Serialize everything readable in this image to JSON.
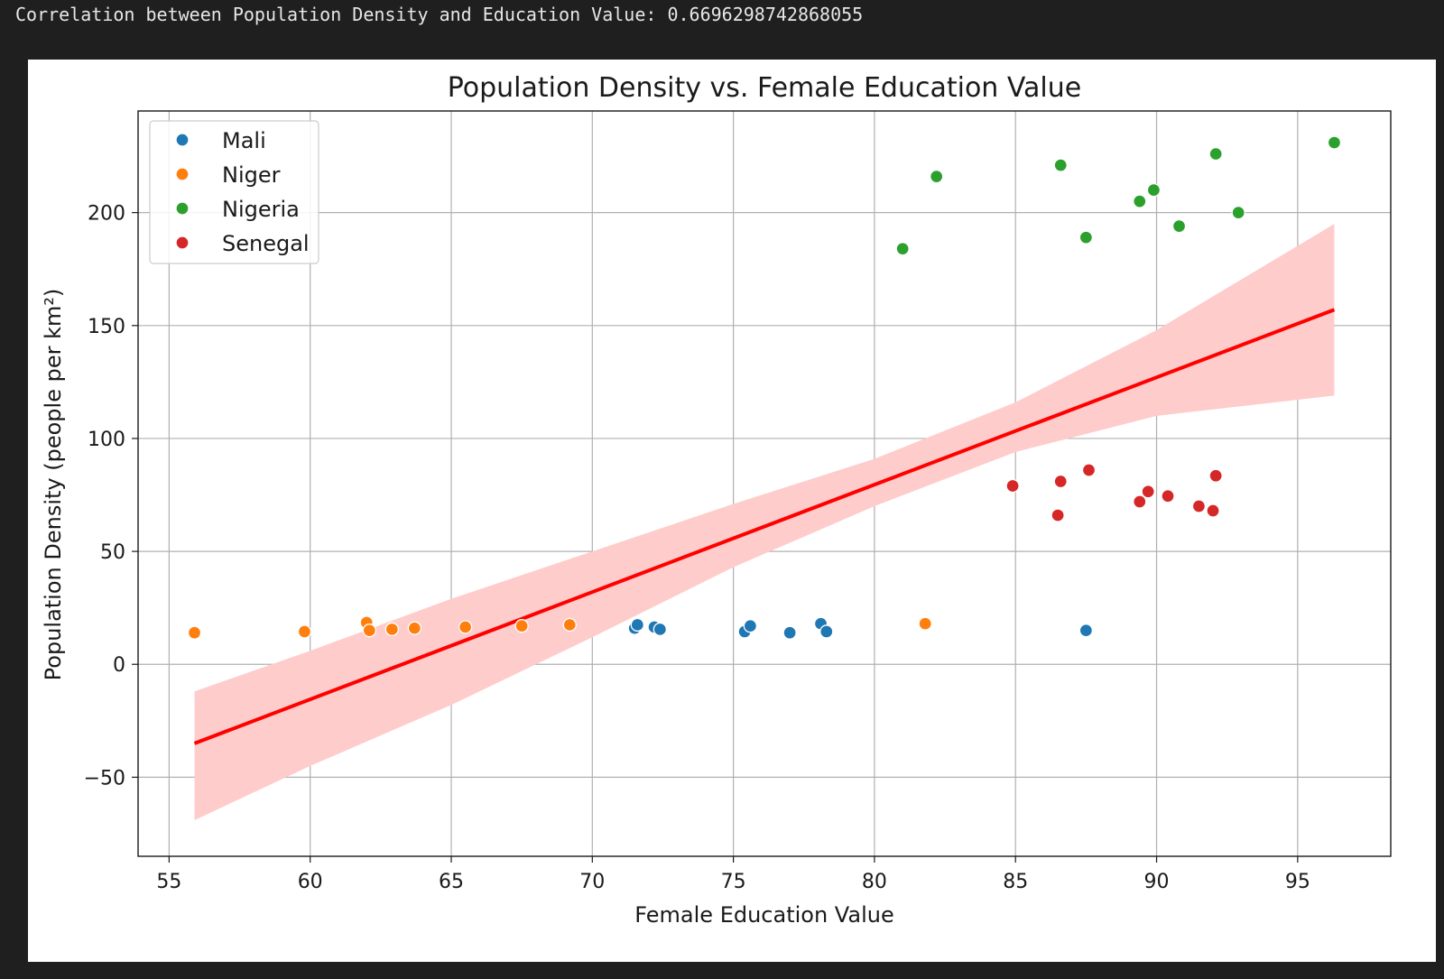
{
  "output": {
    "text": "Correlation between Population Density and Education Value: 0.6696298742868055"
  },
  "chart_data": {
    "type": "scatter",
    "title": "Population Density vs. Female Education Value",
    "xlabel": "Female Education Value",
    "ylabel": "Population Density (people per km²)",
    "xlim": [
      53.9,
      98.3
    ],
    "ylim": [
      -85,
      245
    ],
    "xticks": [
      55,
      60,
      65,
      70,
      75,
      80,
      85,
      90,
      95
    ],
    "xtick_labels": [
      "55",
      "60",
      "65",
      "70",
      "75",
      "80",
      "85",
      "90",
      "95"
    ],
    "yticks": [
      -50,
      0,
      50,
      100,
      150,
      200
    ],
    "ytick_labels": [
      "−50",
      "0",
      "50",
      "100",
      "150",
      "200"
    ],
    "grid": true,
    "legend_position": "top-left",
    "series": [
      {
        "name": "Mali",
        "color": "#1f77b4",
        "points": [
          [
            71.5,
            16
          ],
          [
            71.6,
            17.5
          ],
          [
            72.2,
            16.5
          ],
          [
            72.4,
            15.5
          ],
          [
            75.4,
            14.5
          ],
          [
            75.6,
            17
          ],
          [
            77.0,
            14
          ],
          [
            78.1,
            18
          ],
          [
            78.3,
            14.5
          ],
          [
            87.5,
            15
          ]
        ]
      },
      {
        "name": "Niger",
        "color": "#ff7f0e",
        "points": [
          [
            55.9,
            14
          ],
          [
            59.8,
            14.5
          ],
          [
            62.0,
            18.5
          ],
          [
            62.1,
            15
          ],
          [
            62.9,
            15.5
          ],
          [
            63.7,
            16
          ],
          [
            65.5,
            16.5
          ],
          [
            67.5,
            17
          ],
          [
            69.2,
            17.5
          ],
          [
            81.8,
            18
          ]
        ]
      },
      {
        "name": "Nigeria",
        "color": "#2ca02c",
        "points": [
          [
            81.0,
            184
          ],
          [
            82.2,
            216
          ],
          [
            86.6,
            221
          ],
          [
            87.5,
            189
          ],
          [
            89.4,
            205
          ],
          [
            89.9,
            210
          ],
          [
            90.8,
            194
          ],
          [
            92.1,
            226
          ],
          [
            92.9,
            200
          ],
          [
            96.3,
            231
          ]
        ]
      },
      {
        "name": "Senegal",
        "color": "#d62728",
        "points": [
          [
            84.9,
            79
          ],
          [
            86.5,
            66
          ],
          [
            86.6,
            81
          ],
          [
            87.6,
            86
          ],
          [
            89.4,
            72
          ],
          [
            89.7,
            76.5
          ],
          [
            90.4,
            74.5
          ],
          [
            91.5,
            70
          ],
          [
            92.0,
            68
          ],
          [
            92.1,
            83.5
          ]
        ]
      }
    ],
    "regression": {
      "color": "#ff0000",
      "ci_color": "#ffcccc",
      "line": [
        [
          55.9,
          -35
        ],
        [
          96.3,
          157
        ]
      ],
      "ci_lower": [
        [
          55.9,
          -69
        ],
        [
          60,
          -45
        ],
        [
          65,
          -18
        ],
        [
          70,
          12
        ],
        [
          75,
          43
        ],
        [
          80,
          70
        ],
        [
          85,
          94
        ],
        [
          90,
          110
        ],
        [
          96.3,
          119
        ]
      ],
      "ci_upper": [
        [
          55.9,
          -12
        ],
        [
          60,
          6
        ],
        [
          65,
          29
        ],
        [
          70,
          50
        ],
        [
          75,
          71
        ],
        [
          80,
          91
        ],
        [
          85,
          116
        ],
        [
          90,
          148
        ],
        [
          96.3,
          195
        ]
      ]
    }
  }
}
